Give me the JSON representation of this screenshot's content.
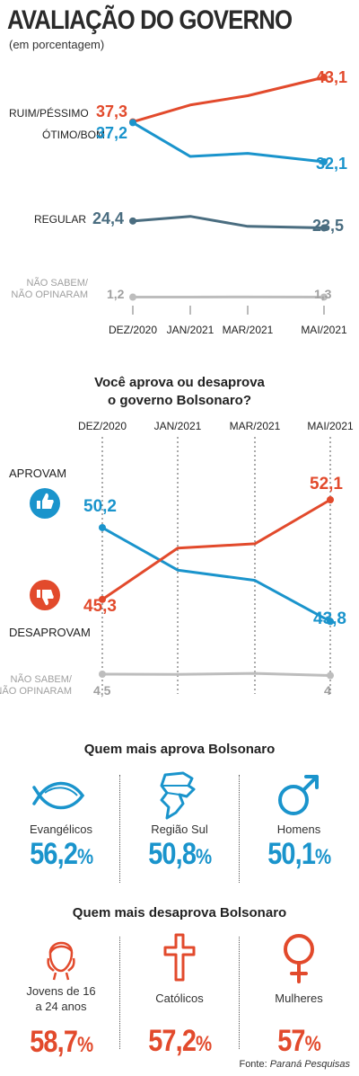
{
  "header": {
    "title": "AVALIAÇÃO DO GOVERNO",
    "subtitle": "(em porcentagem)"
  },
  "colors": {
    "red": "#e24a2c",
    "blue": "#1a94cc",
    "slate": "#4a6d80",
    "gray": "#bdbdbd"
  },
  "chart_data": [
    {
      "type": "line",
      "categories": [
        "DEZ/2020",
        "JAN/2021",
        "MAR/2021",
        "MAI/2021"
      ],
      "series": [
        {
          "name": "RUIM/PÉSSIMO",
          "values": [
            37.3,
            39.5,
            40.7,
            43.1
          ],
          "start_label": "37,3",
          "end_label": "43,1",
          "color": "#e24a2c"
        },
        {
          "name": "ÓTIMO/BOM",
          "values": [
            37.2,
            32.8,
            33.2,
            32.1
          ],
          "start_label": "37,2",
          "end_label": "32,1",
          "color": "#1a94cc"
        },
        {
          "name": "REGULAR",
          "values": [
            24.4,
            25.0,
            23.7,
            23.5
          ],
          "start_label": "24,4",
          "end_label": "23,5",
          "color": "#4a6d80"
        },
        {
          "name": "NÃO SABEM/ NÃO OPINARAM",
          "name_lines": [
            "NÃO SABEM/",
            "NÃO OPINARAM"
          ],
          "values": [
            1.2,
            1.3,
            1.4,
            1.3
          ],
          "start_label": "1,2",
          "end_label": "1,3",
          "color": "#bdbdbd"
        }
      ]
    },
    {
      "type": "line",
      "title_lines": [
        "Você aprova ou desaprova",
        "o governo Bolsonaro?"
      ],
      "categories": [
        "DEZ/2020",
        "JAN/2021",
        "MAR/2021",
        "MAI/2021"
      ],
      "series": [
        {
          "name": "APROVAM",
          "values": [
            50.2,
            47.3,
            46.6,
            43.8
          ],
          "start_label": "50,2",
          "end_label": "43,8",
          "color": "#1a94cc"
        },
        {
          "name": "DESAPROVAM",
          "values": [
            45.3,
            48.8,
            49.1,
            52.1
          ],
          "start_label": "45,3",
          "end_label": "52,1",
          "color": "#e24a2c"
        },
        {
          "name": "NÃO SABEM/ NÃO OPINARAM",
          "name_lines": [
            "NÃO SABEM/",
            "NÃO OPINARAM"
          ],
          "values": [
            4.5,
            4.4,
            4.8,
            4.0
          ],
          "start_label": "4,5",
          "end_label": "4",
          "color": "#bdbdbd"
        }
      ]
    }
  ],
  "approve_group": {
    "title": "Quem mais aprova Bolsonaro",
    "items": [
      {
        "icon": "fish-icon",
        "label_lines": [
          "Evangélicos"
        ],
        "value": "56,2",
        "unit": "%"
      },
      {
        "icon": "map-south-region-icon",
        "label_lines": [
          "Região Sul"
        ],
        "value": "50,8",
        "unit": "%"
      },
      {
        "icon": "male-symbol-icon",
        "label_lines": [
          "Homens"
        ],
        "value": "50,1",
        "unit": "%"
      }
    ]
  },
  "disapprove_group": {
    "title": "Quem mais desaprova Bolsonaro",
    "items": [
      {
        "icon": "young-woman-icon",
        "label_lines": [
          "Jovens de 16",
          "a 24 anos"
        ],
        "value": "58,7",
        "unit": "%"
      },
      {
        "icon": "cross-icon",
        "label_lines": [
          "Católicos"
        ],
        "value": "57,2",
        "unit": "%"
      },
      {
        "icon": "female-symbol-icon",
        "label_lines": [
          "Mulheres"
        ],
        "value": "57",
        "unit": "%"
      }
    ]
  },
  "footer": {
    "source_prefix": "Fonte: ",
    "source_name": "Paraná Pesquisas"
  }
}
